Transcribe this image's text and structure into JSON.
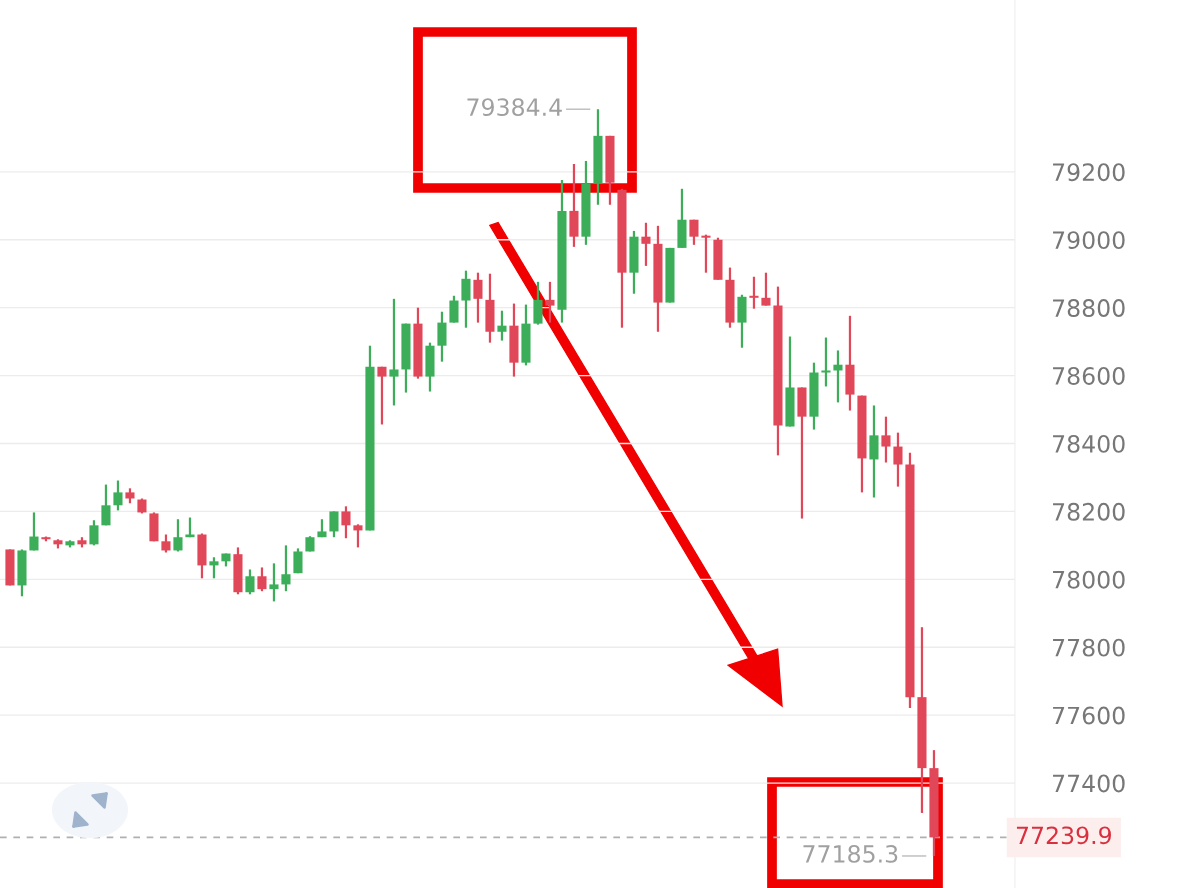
{
  "chart_data": {
    "type": "candlestick",
    "categories": [
      null,
      null,
      null,
      null,
      null,
      null,
      null,
      null,
      null,
      null,
      null,
      null,
      null,
      null,
      null,
      null,
      null,
      null,
      null,
      null,
      null,
      null,
      null,
      null,
      null,
      null,
      null,
      null,
      null,
      null,
      null,
      null,
      null,
      null,
      null,
      null,
      null,
      null,
      null,
      null,
      null,
      null,
      null,
      null,
      null,
      null,
      null,
      null,
      null,
      null,
      null,
      null,
      null,
      null,
      null,
      null,
      null,
      null,
      null,
      null,
      null,
      null,
      null,
      null,
      null,
      null,
      null,
      null,
      null,
      null,
      null,
      null,
      null,
      null,
      null,
      null,
      null,
      null
    ],
    "ohlc": [
      [
        78088,
        78088,
        77982,
        77982
      ],
      [
        77982,
        78088,
        77950,
        78085
      ],
      [
        78085,
        78197,
        78085,
        78126
      ],
      [
        78124,
        78126,
        78112,
        78118
      ],
      [
        78115,
        78118,
        78091,
        78103
      ],
      [
        78100,
        78115,
        78094,
        78112
      ],
      [
        78115,
        78124,
        78094,
        78103
      ],
      [
        78103,
        78174,
        78100,
        78159
      ],
      [
        78159,
        78279,
        78159,
        78218
      ],
      [
        78218,
        78291,
        78203,
        78256
      ],
      [
        78256,
        78268,
        78224,
        78238
      ],
      [
        78235,
        78238,
        78194,
        78197
      ],
      [
        78194,
        78197,
        78112,
        78112
      ],
      [
        78112,
        78132,
        78079,
        78085
      ],
      [
        78085,
        78177,
        78082,
        78124
      ],
      [
        78124,
        78182,
        78124,
        78132
      ],
      [
        78132,
        78135,
        78003,
        78041
      ],
      [
        78041,
        78065,
        78003,
        78053
      ],
      [
        78053,
        78076,
        78038,
        78076
      ],
      [
        78074,
        78094,
        77956,
        77962
      ],
      [
        77962,
        78029,
        77956,
        78009
      ],
      [
        78009,
        78035,
        77965,
        77971
      ],
      [
        77971,
        78047,
        77935,
        77985
      ],
      [
        77985,
        78100,
        77965,
        78015
      ],
      [
        78018,
        78091,
        78018,
        78082
      ],
      [
        78082,
        78127,
        78082,
        78124
      ],
      [
        78124,
        78177,
        78124,
        78141
      ],
      [
        78141,
        78200,
        78124,
        78200
      ],
      [
        78200,
        78215,
        78121,
        78159
      ],
      [
        78159,
        78162,
        78094,
        78144
      ],
      [
        78144,
        78688,
        78144,
        78626
      ],
      [
        78626,
        78626,
        78456,
        78597
      ],
      [
        78597,
        78826,
        78512,
        78618
      ],
      [
        78618,
        78753,
        78550,
        78753
      ],
      [
        78753,
        78800,
        78591,
        78597
      ],
      [
        78597,
        78697,
        78553,
        78688
      ],
      [
        78688,
        78788,
        78641,
        78756
      ],
      [
        78756,
        78835,
        78756,
        78821
      ],
      [
        78821,
        78909,
        78741,
        78885
      ],
      [
        78882,
        78903,
        78756,
        78826
      ],
      [
        78823,
        78900,
        78697,
        78729
      ],
      [
        78729,
        78791,
        78703,
        78747
      ],
      [
        78747,
        78812,
        78597,
        78638
      ],
      [
        78638,
        78809,
        78630,
        78753
      ],
      [
        78753,
        78876,
        78750,
        78823
      ],
      [
        78823,
        78876,
        78756,
        78806
      ],
      [
        78794,
        79176,
        78756,
        79085
      ],
      [
        79085,
        79223,
        78979,
        79009
      ],
      [
        79009,
        79232,
        78985,
        79165
      ],
      [
        79165,
        79384.4,
        79103,
        79306
      ],
      [
        79306,
        79306,
        79103,
        79168
      ],
      [
        79147,
        79150,
        78741,
        78903
      ],
      [
        78903,
        79026,
        78841,
        79009
      ],
      [
        79009,
        79050,
        78923,
        78988
      ],
      [
        78988,
        79041,
        78729,
        78815
      ],
      [
        78815,
        78976,
        78815,
        78976
      ],
      [
        78976,
        79150,
        78976,
        79059
      ],
      [
        79059,
        79059,
        78985,
        79009
      ],
      [
        79012,
        79015,
        78903,
        79006
      ],
      [
        79000,
        79006,
        78882,
        78882
      ],
      [
        78882,
        78918,
        78741,
        78756
      ],
      [
        78756,
        78838,
        78682,
        78832
      ],
      [
        78835,
        78891,
        78797,
        78829
      ],
      [
        78829,
        78903,
        78806,
        78806
      ],
      [
        78806,
        78862,
        78365,
        78453
      ],
      [
        78450,
        78715,
        78450,
        78565
      ],
      [
        78565,
        78565,
        78179,
        78479
      ],
      [
        78479,
        78638,
        78441,
        78609
      ],
      [
        78609,
        78712,
        78568,
        78615
      ],
      [
        78615,
        78674,
        78521,
        78632
      ],
      [
        78632,
        78776,
        78497,
        78544
      ],
      [
        78541,
        78541,
        78256,
        78356
      ],
      [
        78353,
        78512,
        78241,
        78424
      ],
      [
        78424,
        78479,
        78344,
        78391
      ],
      [
        78391,
        78432,
        78273,
        78338
      ],
      [
        78338,
        78373,
        77621,
        77653
      ],
      [
        77653,
        77859,
        77312,
        77444
      ],
      [
        77444,
        77497,
        77185.3,
        77239.9
      ]
    ],
    "colors": [
      "#e0485a",
      "#3cae5a",
      "#3cae5a",
      "#e0485a",
      "#e0485a",
      "#3cae5a",
      "#e0485a",
      "#3cae5a",
      "#3cae5a",
      "#3cae5a",
      "#e0485a",
      "#e0485a",
      "#e0485a",
      "#e0485a",
      "#3cae5a",
      "#3cae5a",
      "#e0485a",
      "#3cae5a",
      "#3cae5a",
      "#e0485a",
      "#3cae5a",
      "#e0485a",
      "#3cae5a",
      "#3cae5a",
      "#3cae5a",
      "#3cae5a",
      "#3cae5a",
      "#3cae5a",
      "#e0485a",
      "#e0485a",
      "#3cae5a",
      "#e0485a",
      "#3cae5a",
      "#3cae5a",
      "#e0485a",
      "#3cae5a",
      "#3cae5a",
      "#3cae5a",
      "#3cae5a",
      "#e0485a",
      "#e0485a",
      "#3cae5a",
      "#e0485a",
      "#3cae5a",
      "#3cae5a",
      "#e0485a",
      "#3cae5a",
      "#e0485a",
      "#3cae5a",
      "#3cae5a",
      "#e0485a",
      "#e0485a",
      "#3cae5a",
      "#e0485a",
      "#e0485a",
      "#3cae5a",
      "#3cae5a",
      "#e0485a",
      "#e0485a",
      "#e0485a",
      "#e0485a",
      "#3cae5a",
      "#e0485a",
      "#e0485a",
      "#e0485a",
      "#3cae5a",
      "#e0485a",
      "#3cae5a",
      "#3cae5a",
      "#3cae5a",
      "#e0485a",
      "#e0485a",
      "#3cae5a",
      "#e0485a",
      "#e0485a",
      "#e0485a",
      "#e0485a",
      "#e0485a"
    ],
    "ylim": [
      77091,
      79706
    ],
    "yticks": [
      77400,
      77600,
      77800,
      78000,
      78200,
      78400,
      78600,
      78800,
      79000,
      79200
    ],
    "tick_labels": "y",
    "grid": "y",
    "annotations": [
      "79384.4",
      "77185.3"
    ],
    "ref_lines": [
      {
        "axis": "y",
        "value": 77239.9,
        "label": "77239.9",
        "color": "#b0b0b0",
        "line_style": "dashed"
      }
    ]
  }
}
